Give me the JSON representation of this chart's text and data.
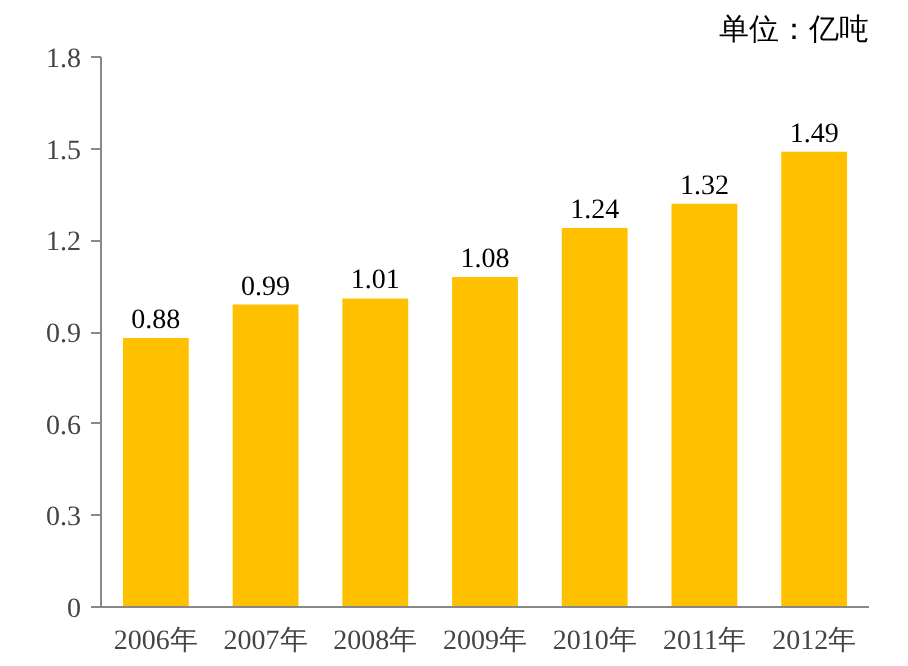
{
  "chart_data": {
    "type": "bar",
    "annotations": [
      "单位：亿吨"
    ],
    "categories": [
      "2006年",
      "2007年",
      "2008年",
      "2009年",
      "2010年",
      "2011年",
      "2012年"
    ],
    "values": [
      0.88,
      0.99,
      1.01,
      1.08,
      1.24,
      1.32,
      1.49
    ],
    "color": "#ffc000",
    "ylim": [
      0,
      1.8
    ],
    "yticks": [
      0,
      0.3,
      0.6,
      0.9,
      1.2,
      1.5,
      1.8
    ],
    "grid": false,
    "data_labels": true
  }
}
